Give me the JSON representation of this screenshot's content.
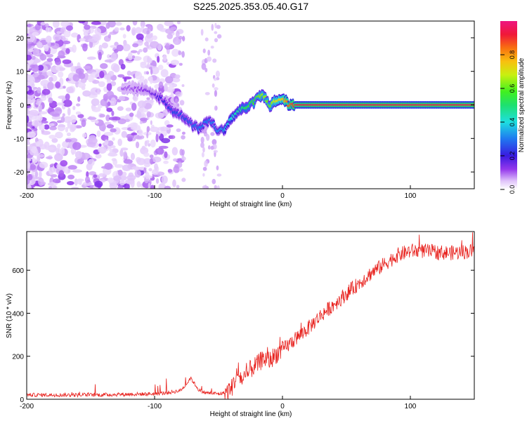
{
  "title": "S225.2025.353.05.40.G17",
  "chart_data": [
    {
      "type": "heatmap",
      "xlabel": "Height of straight line (km)",
      "ylabel": "Frequency (Hz)",
      "xlim": [
        -200,
        150
      ],
      "ylim": [
        -25,
        25
      ],
      "xticks": [
        -200,
        -100,
        0,
        100
      ],
      "yticks": [
        -20,
        -10,
        0,
        10,
        20
      ],
      "colorbar": {
        "label": "Normalized spectral amplitude",
        "range": [
          0.0,
          1.0
        ],
        "ticks": [
          0.0,
          0.2,
          0.4,
          0.6,
          0.8
        ],
        "tick_labels": [
          "0.0",
          "0.2",
          "0.4",
          "0.6",
          "0.8"
        ]
      },
      "ridge": {
        "x": [
          -120,
          -110,
          -100,
          -95,
          -90,
          -85,
          -80,
          -75,
          -70,
          -65,
          -60,
          -55,
          -50,
          -45,
          -40,
          -35,
          -30,
          -25,
          -20,
          -15,
          -10,
          -5,
          0,
          5,
          10,
          20,
          50,
          100,
          150
        ],
        "freq": [
          5,
          4.5,
          3,
          2,
          0,
          -2,
          -3,
          -4,
          -6,
          -7,
          -5,
          -5,
          -8,
          -7,
          -4,
          -2,
          -1,
          0,
          2,
          3,
          0,
          1,
          2,
          0,
          0,
          0,
          0,
          0,
          0
        ],
        "amplitude": [
          0.1,
          0.12,
          0.15,
          0.2,
          0.22,
          0.25,
          0.25,
          0.25,
          0.28,
          0.3,
          0.3,
          0.3,
          0.32,
          0.35,
          0.4,
          0.45,
          0.5,
          0.55,
          0.6,
          0.65,
          0.6,
          0.7,
          0.75,
          0.85,
          0.9,
          0.93,
          0.95,
          0.95,
          0.95
        ]
      }
    },
    {
      "type": "line",
      "xlabel": "Height of straight line (km)",
      "ylabel": "SNR (10 * v/v)",
      "xlim": [
        -200,
        150
      ],
      "ylim": [
        0,
        780
      ],
      "xticks": [
        -200,
        -100,
        0,
        100
      ],
      "yticks": [
        0,
        200,
        400,
        600
      ],
      "color": "#e8231f",
      "x": [
        -200,
        -150,
        -100,
        -90,
        -80,
        -75,
        -72,
        -65,
        -60,
        -50,
        -45,
        -40,
        -35,
        -30,
        -25,
        -20,
        -15,
        -10,
        -5,
        0,
        10,
        20,
        30,
        40,
        50,
        60,
        70,
        80,
        90,
        100,
        110,
        120,
        130,
        150
      ],
      "values": [
        20,
        20,
        25,
        30,
        40,
        70,
        100,
        40,
        30,
        25,
        30,
        50,
        120,
        80,
        140,
        160,
        190,
        180,
        210,
        230,
        280,
        330,
        390,
        440,
        490,
        540,
        590,
        630,
        670,
        690,
        690,
        685,
        680,
        690
      ]
    }
  ]
}
